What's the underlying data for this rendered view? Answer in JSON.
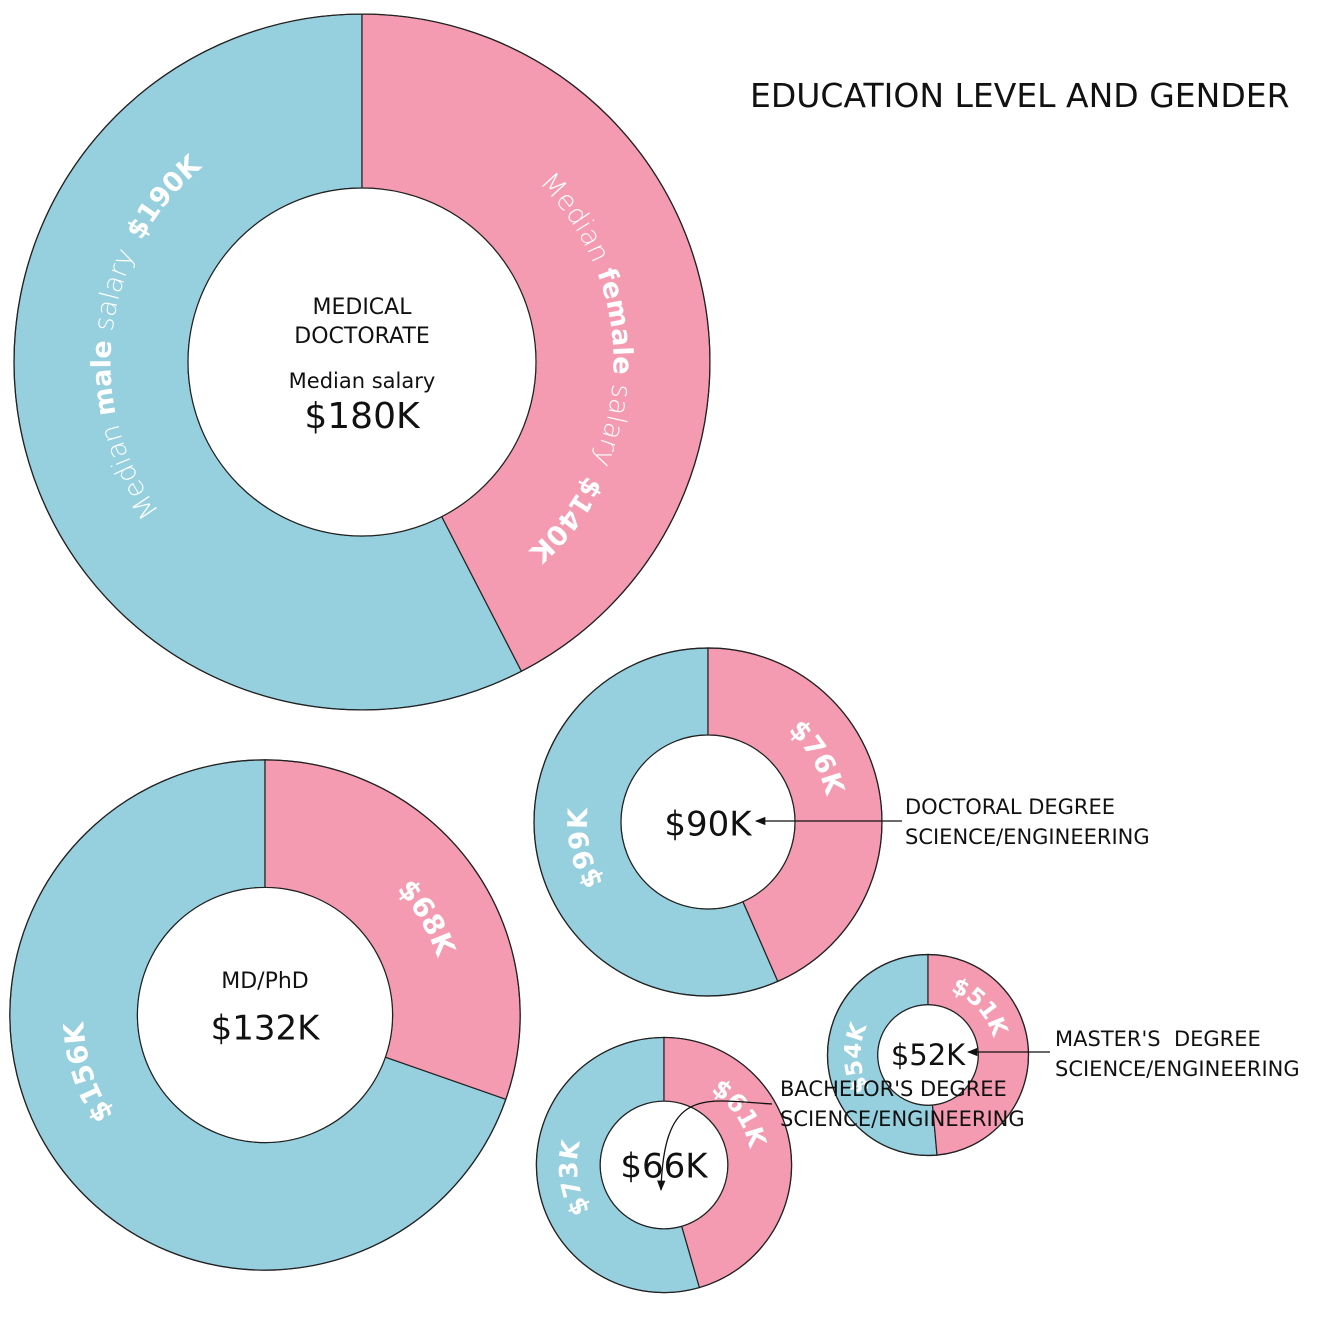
{
  "title": "EDUCATION LEVEL AND GENDER",
  "chart_data": [
    {
      "type": "donut",
      "title": [
        "MEDICAL",
        "DOCTORATE"
      ],
      "center_text": "Median salary",
      "median": 180,
      "median_label": "$180K",
      "categories": [
        "male",
        "female"
      ],
      "annotation": [
        "Median",
        "salary"
      ],
      "values": [
        190,
        140
      ],
      "value_labels": [
        "$190K",
        "$140K"
      ],
      "colors": [
        "#96cfdd",
        "#f49bb1"
      ]
    },
    {
      "type": "donut",
      "title": [
        "MD/PhD"
      ],
      "median": 132,
      "median_label": "$132K",
      "values": [
        156,
        68
      ],
      "value_labels": [
        "$156K",
        "$68K"
      ],
      "colors": [
        "#96cfdd",
        "#f49bb1"
      ]
    },
    {
      "type": "donut",
      "label": [
        "DOCTORAL DEGREE",
        "SCIENCE/ENGINEERING"
      ],
      "median": 90,
      "median_label": "$90K",
      "values": [
        99,
        76
      ],
      "value_labels": [
        "$99K",
        "$76K"
      ],
      "colors": [
        "#96cfdd",
        "#f49bb1"
      ]
    },
    {
      "type": "donut",
      "label": [
        "MASTER'S  DEGREE",
        "SCIENCE/ENGINEERING"
      ],
      "median": 52,
      "median_label": "$52K",
      "values": [
        54,
        51
      ],
      "value_labels": [
        "$54K",
        "$51K"
      ],
      "colors": [
        "#96cfdd",
        "#f49bb1"
      ]
    },
    {
      "type": "donut",
      "label": [
        "BACHELOR'S DEGREE",
        "SCIENCE/ENGINEERING"
      ],
      "median": 66,
      "median_label": "$66K",
      "values": [
        73,
        61
      ],
      "value_labels": [
        "$73K",
        "$61K"
      ],
      "colors": [
        "#96cfdd",
        "#f49bb1"
      ]
    }
  ]
}
